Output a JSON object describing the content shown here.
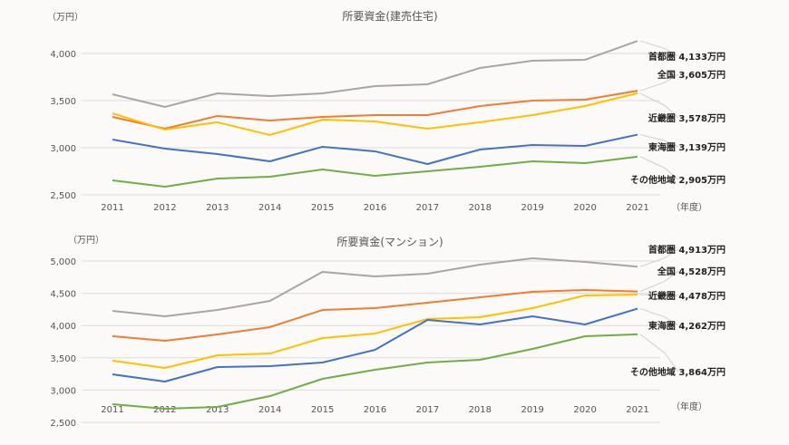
{
  "chart_data": [
    {
      "type": "line",
      "title": "所要資金(建売住宅)",
      "ylabel": "（万円）",
      "xlabel": "（年度）",
      "categories": [
        "2011",
        "2012",
        "2013",
        "2014",
        "2015",
        "2016",
        "2017",
        "2018",
        "2019",
        "2020",
        "2021"
      ],
      "yticks": [
        "2,500",
        "3,000",
        "3,500",
        "4,000"
      ],
      "ylim": [
        2500,
        4000
      ],
      "grid": true,
      "series": [
        {
          "name": "首都圏",
          "color": "#a6a6a6",
          "values": [
            3567,
            3433,
            3577,
            3548,
            3577,
            3654,
            3673,
            3846,
            3923,
            3933,
            4133
          ],
          "label": "首都圏 4,133万円"
        },
        {
          "name": "全国",
          "color": "#ed7d31",
          "values": [
            3327,
            3202,
            3337,
            3288,
            3327,
            3346,
            3346,
            3442,
            3500,
            3510,
            3605
          ],
          "label": "全国 3,605万円"
        },
        {
          "name": "近畿圏",
          "color": "#ffc000",
          "values": [
            3365,
            3192,
            3270,
            3135,
            3298,
            3279,
            3202,
            3270,
            3346,
            3442,
            3578
          ],
          "label": "近畿圏 3,578万円"
        },
        {
          "name": "東海圏",
          "color": "#4472c4",
          "values": [
            3087,
            2990,
            2933,
            2856,
            3010,
            2962,
            2827,
            2981,
            3029,
            3019,
            3139
          ],
          "label": "東海圏 3,139万円"
        },
        {
          "name": "その他地域",
          "color": "#70ad47",
          "values": [
            2654,
            2587,
            2673,
            2692,
            2769,
            2702,
            2750,
            2798,
            2856,
            2837,
            2905
          ],
          "label": "その他地域 2,905万円"
        }
      ]
    },
    {
      "type": "line",
      "title": "所要資金(マンション)",
      "ylabel": "（万円）",
      "xlabel": "（年度）",
      "categories": [
        "2011",
        "2012",
        "2013",
        "2014",
        "2015",
        "2016",
        "2017",
        "2018",
        "2019",
        "2020",
        "2021"
      ],
      "yticks": [
        "2,500",
        "3,000",
        "3,500",
        "4,000",
        "4,500",
        "5,000"
      ],
      "ylim": [
        2500,
        5000
      ],
      "grid": true,
      "series": [
        {
          "name": "首都圏",
          "color": "#a6a6a6",
          "values": [
            4227,
            4143,
            4241,
            4382,
            4831,
            4761,
            4803,
            4944,
            5042,
            4986,
            4913
          ],
          "label": "首都圏 4,913万円"
        },
        {
          "name": "全国",
          "color": "#ed7d31",
          "values": [
            3834,
            3764,
            3862,
            3975,
            4241,
            4270,
            4354,
            4438,
            4522,
            4551,
            4528
          ],
          "label": "全国 4,528万円"
        },
        {
          "name": "近畿圏",
          "color": "#ffc000",
          "values": [
            3455,
            3343,
            3539,
            3567,
            3806,
            3876,
            4101,
            4129,
            4270,
            4466,
            4478
          ],
          "label": "近畿圏 4,478万円"
        },
        {
          "name": "東海圏",
          "color": "#4472c4",
          "values": [
            3244,
            3132,
            3357,
            3371,
            3427,
            3624,
            4087,
            4017,
            4143,
            4017,
            4262
          ],
          "label": "東海圏 4,262万円"
        },
        {
          "name": "その他地域",
          "color": "#70ad47",
          "values": [
            2781,
            2711,
            2739,
            2907,
            3174,
            3315,
            3427,
            3469,
            3638,
            3834,
            3864
          ],
          "label": "その他地域 3,864万円"
        }
      ]
    }
  ]
}
